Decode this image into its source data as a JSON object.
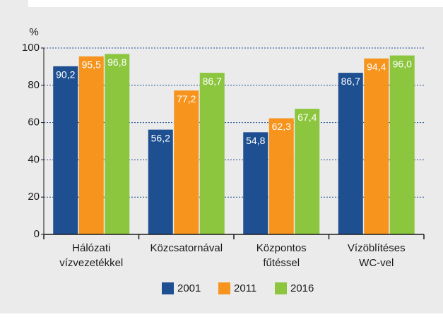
{
  "chart_data": {
    "type": "bar",
    "y_label": "%",
    "categories": [
      [
        "Hálózati",
        "vízvezetékkel"
      ],
      [
        "Közcsatornával"
      ],
      [
        "Központos",
        "fűtéssel"
      ],
      [
        "Vízöblítéses",
        "WC-vel"
      ]
    ],
    "series": [
      {
        "name": "2001",
        "color": "#1d4f91",
        "values": [
          90.2,
          56.2,
          54.8,
          86.7
        ],
        "value_labels": [
          "90,2",
          "56,2",
          "54,8",
          "86,7"
        ]
      },
      {
        "name": "2011",
        "color": "#f7941d",
        "values": [
          95.5,
          77.2,
          62.3,
          94.4
        ],
        "value_labels": [
          "95,5",
          "77,2",
          "62,3",
          "94,4"
        ]
      },
      {
        "name": "2016",
        "color": "#8cc63f",
        "values": [
          96.8,
          86.7,
          67.4,
          96.0
        ],
        "value_labels": [
          "96,8",
          "86,7",
          "67,4",
          "96,0"
        ]
      }
    ],
    "ylim": [
      0,
      100
    ],
    "yticks": [
      0,
      20,
      40,
      60,
      80,
      100
    ],
    "grid": true
  }
}
